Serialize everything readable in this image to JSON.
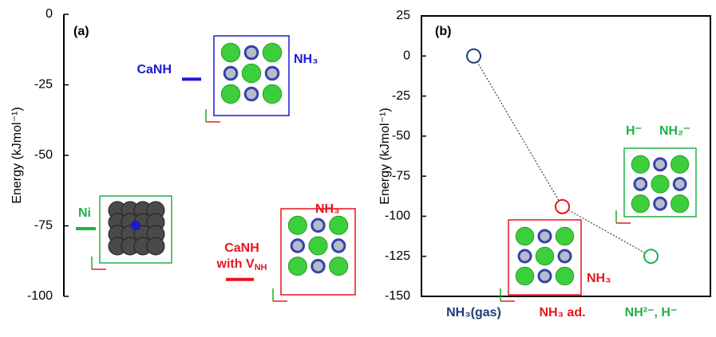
{
  "chart_data": [
    {
      "type": "level",
      "title": "(a)",
      "ylabel": "Energy (kJmol⁻¹)",
      "ylim": [
        -100,
        0
      ],
      "yticks": [
        0,
        -25,
        -50,
        -75,
        -100
      ],
      "levels": [
        {
          "name": "CaNH",
          "color": "#1a1ad0",
          "value": -23
        },
        {
          "name": "Ni",
          "color": "#22b04a",
          "value": -76
        },
        {
          "name": "CaNH",
          "name2": "with V",
          "sub": "NH",
          "color": "#e8141c",
          "value": -94
        }
      ],
      "annotations": [
        {
          "text": "NH₃",
          "color": "#1a1ad0"
        },
        {
          "text": "NH₃",
          "color": "#e8141c"
        }
      ]
    },
    {
      "type": "line",
      "title": "(b)",
      "ylabel": "Energy (kJmol⁻¹)",
      "ylim": [
        -150,
        25
      ],
      "yticks": [
        25,
        0,
        -25,
        -50,
        -75,
        -100,
        -125,
        -150
      ],
      "categories": [
        "NH₃(gas)",
        "NH₃ ad.",
        "NH²⁻, H⁻"
      ],
      "colors": [
        "#1f3a7a",
        "#e8141c",
        "#22b04a"
      ],
      "values": [
        0,
        -94,
        -125
      ],
      "line_color": "#222",
      "annotations": [
        {
          "text": "NH₃",
          "color": "#e8141c"
        },
        {
          "text": "H⁻",
          "color": "#22b04a"
        },
        {
          "text": "NH₂⁻",
          "color": "#22b04a"
        }
      ]
    }
  ]
}
